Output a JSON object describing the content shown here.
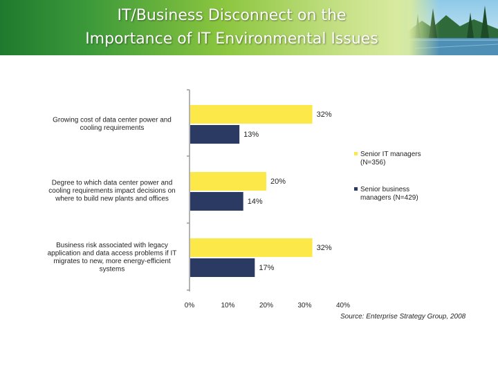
{
  "slide": {
    "title_line1": "IT/Business  Disconnect on the",
    "title_line2": "Importance of IT Environmental Issues",
    "source": "Source: Enterprise Strategy Group, 2008"
  },
  "chart_data": {
    "type": "bar",
    "orientation": "horizontal",
    "categories": [
      [
        "Growing cost of data center power and",
        "cooling requirements"
      ],
      [
        "Degree to which data center power and",
        "cooling requirements impact decisions on",
        "where to build new plants and offices"
      ],
      [
        "Business risk associated with legacy",
        "application and data access problems if IT",
        "migrates to new, more energy-efficient",
        "systems"
      ]
    ],
    "series": [
      {
        "name": "Senior IT managers (N=356)",
        "legend_lines": [
          "Senior IT managers",
          "(N=356)"
        ],
        "color": "#fde84a",
        "values": [
          32,
          20,
          32
        ],
        "labels": [
          "32%",
          "20%",
          "32%"
        ]
      },
      {
        "name": "Senior business managers (N=429)",
        "legend_lines": [
          "Senior business",
          "managers (N=429)"
        ],
        "color": "#2b3a63",
        "values": [
          13,
          14,
          17
        ],
        "labels": [
          "13%",
          "14%",
          "17%"
        ]
      }
    ],
    "xlim": [
      0,
      40
    ],
    "xticks": [
      "0%",
      "10%",
      "20%",
      "30%",
      "40%"
    ],
    "legend_position": "right",
    "grid": false
  }
}
